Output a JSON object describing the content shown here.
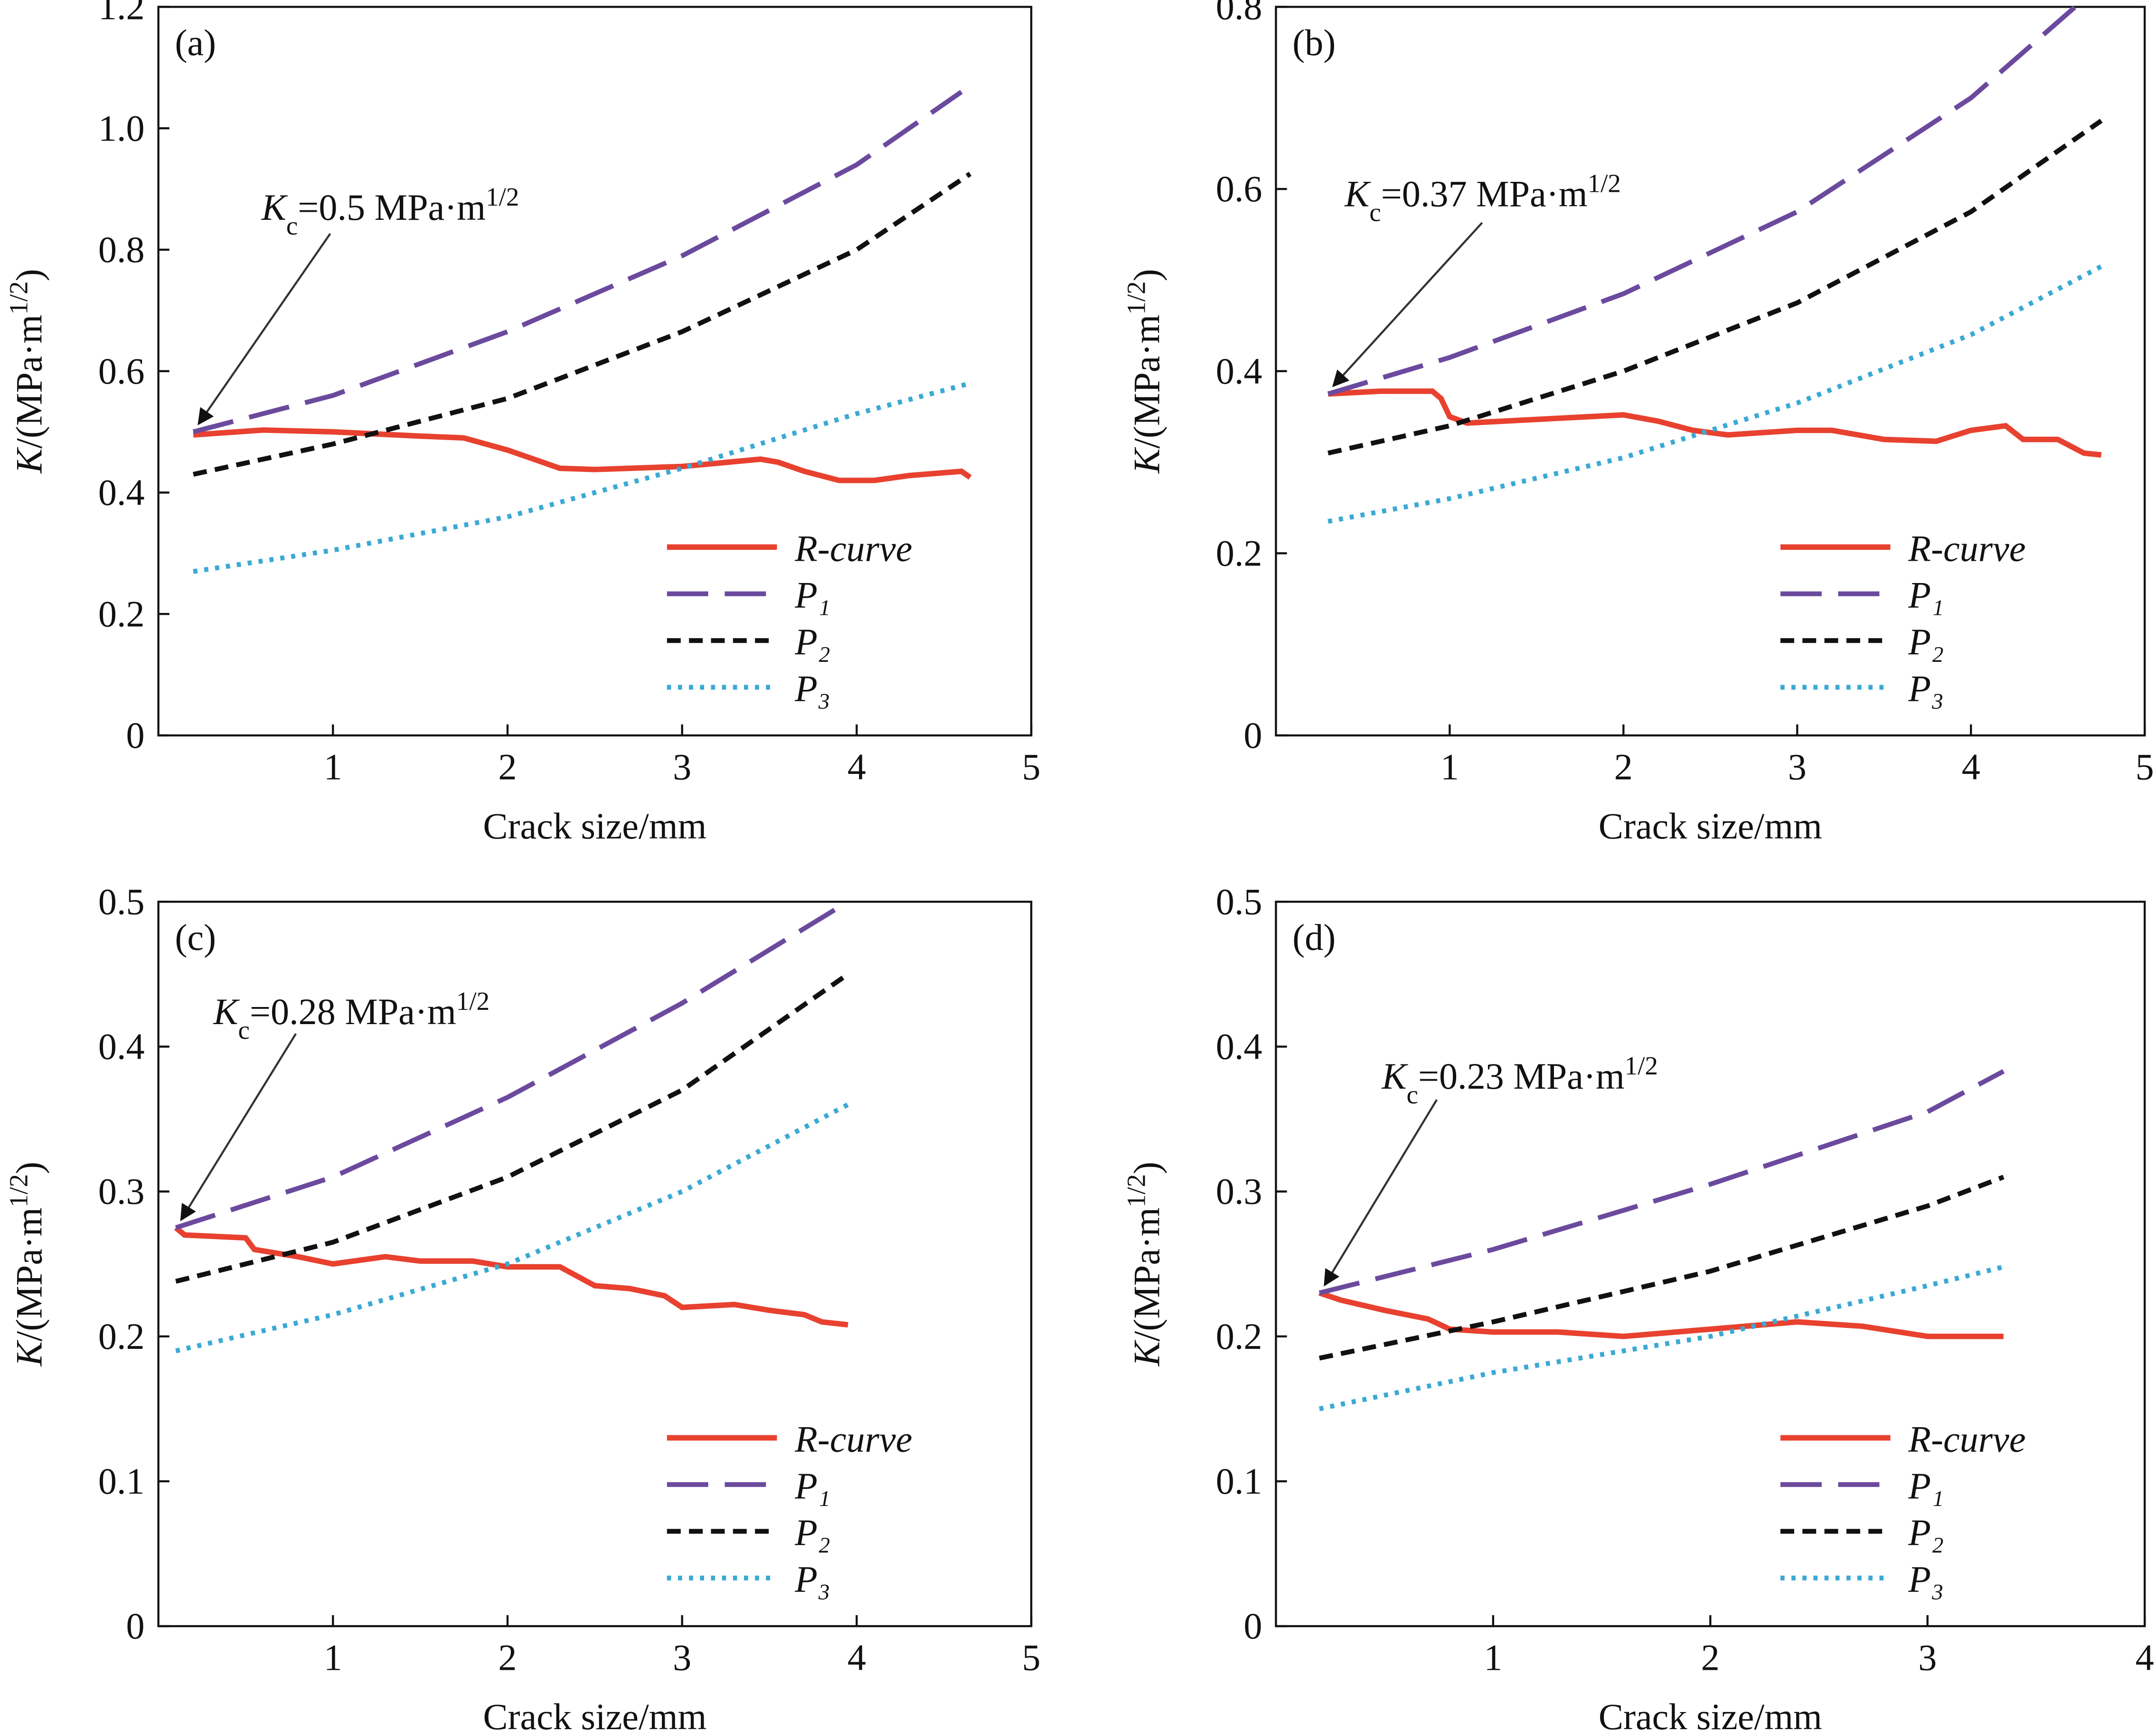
{
  "chart_data": [
    {
      "type": "line",
      "panel": "(a)",
      "xlabel": "Crack size/mm",
      "ylabel": [
        "K",
        "/(MPa·m",
        "1/2",
        ")"
      ],
      "annotation": [
        "K",
        "c",
        "=0.5 MPa·m",
        "1/2"
      ],
      "xlim": [
        0,
        5
      ],
      "ylim": [
        0,
        1.2
      ],
      "xticks": [
        1,
        2,
        3,
        4,
        5
      ],
      "yticks": [
        0,
        0.2,
        0.4,
        0.6,
        0.8,
        {
          "value": 1,
          "label": "1.0"
        },
        1.2
      ],
      "series": [
        {
          "name": "R-curve",
          "color": "#e8412f",
          "x": [
            0.2,
            0.6,
            1.0,
            1.5,
            1.75,
            2.0,
            2.3,
            2.5,
            3.0,
            3.45,
            3.55,
            3.7,
            3.9,
            4.1,
            4.3,
            4.6,
            4.65
          ],
          "values": [
            0.495,
            0.503,
            0.5,
            0.493,
            0.49,
            0.47,
            0.44,
            0.438,
            0.443,
            0.455,
            0.45,
            0.435,
            0.42,
            0.42,
            0.428,
            0.435,
            0.425
          ]
        },
        {
          "name": "P₁",
          "color": "#6b4a9e",
          "x": [
            0.2,
            1,
            2,
            3,
            4,
            4.6
          ],
          "values": [
            0.5,
            0.56,
            0.665,
            0.79,
            0.94,
            1.06
          ]
        },
        {
          "name": "P₂",
          "color": "#111111",
          "x": [
            0.2,
            1,
            2,
            3,
            4,
            4.65
          ],
          "values": [
            0.43,
            0.48,
            0.555,
            0.665,
            0.8,
            0.925
          ]
        },
        {
          "name": "P₃",
          "color": "#3aa9d4",
          "x": [
            0.2,
            1,
            2,
            3,
            4,
            4.65
          ],
          "values": [
            0.27,
            0.305,
            0.36,
            0.44,
            0.53,
            0.58
          ]
        }
      ]
    },
    {
      "type": "line",
      "panel": "(b)",
      "xlabel": "Crack size/mm",
      "ylabel": [
        "K",
        "/(MPa·m",
        "1/2",
        ")"
      ],
      "annotation": [
        "K",
        "c",
        "=0.37 MPa·m",
        "1/2"
      ],
      "xlim": [
        0,
        5
      ],
      "ylim": [
        0,
        0.8
      ],
      "xticks": [
        1,
        2,
        3,
        4,
        5
      ],
      "yticks": [
        0,
        0.2,
        0.4,
        0.6,
        0.8
      ],
      "series": [
        {
          "name": "R-curve",
          "color": "#e8412f",
          "x": [
            0.3,
            0.6,
            0.9,
            0.95,
            1.0,
            1.1,
            1.5,
            2.0,
            2.2,
            2.4,
            2.6,
            3.0,
            3.2,
            3.5,
            3.8,
            4.0,
            4.2,
            4.3,
            4.5,
            4.65,
            4.75
          ],
          "values": [
            0.375,
            0.378,
            0.378,
            0.37,
            0.35,
            0.343,
            0.347,
            0.352,
            0.345,
            0.335,
            0.33,
            0.335,
            0.335,
            0.325,
            0.323,
            0.335,
            0.34,
            0.325,
            0.325,
            0.31,
            0.308
          ]
        },
        {
          "name": "P₁",
          "color": "#6b4a9e",
          "x": [
            0.3,
            1,
            2,
            3,
            4,
            4.6
          ],
          "values": [
            0.375,
            0.415,
            0.485,
            0.575,
            0.7,
            0.8
          ]
        },
        {
          "name": "P₂",
          "color": "#111111",
          "x": [
            0.3,
            1,
            2,
            3,
            4,
            4.75
          ],
          "values": [
            0.31,
            0.34,
            0.4,
            0.475,
            0.575,
            0.675
          ]
        },
        {
          "name": "P₃",
          "color": "#3aa9d4",
          "x": [
            0.3,
            1,
            2,
            3,
            4,
            4.75
          ],
          "values": [
            0.235,
            0.26,
            0.305,
            0.365,
            0.44,
            0.515
          ]
        }
      ]
    },
    {
      "type": "line",
      "panel": "(c)",
      "xlabel": "Crack size/mm",
      "ylabel": [
        "K",
        "/(MPa·m",
        "1/2",
        ")"
      ],
      "annotation": [
        "K",
        "c",
        "=0.28 MPa·m",
        "1/2"
      ],
      "xlim": [
        0,
        5
      ],
      "ylim": [
        0,
        0.5
      ],
      "xticks": [
        1,
        2,
        3,
        4,
        5
      ],
      "yticks": [
        0,
        0.1,
        0.2,
        0.3,
        0.4,
        0.5
      ],
      "series": [
        {
          "name": "R-curve",
          "color": "#e8412f",
          "x": [
            0.1,
            0.15,
            0.5,
            0.55,
            0.8,
            1.0,
            1.3,
            1.5,
            1.8,
            2.0,
            2.3,
            2.5,
            2.7,
            2.9,
            3.0,
            3.3,
            3.5,
            3.7,
            3.8,
            3.95
          ],
          "values": [
            0.275,
            0.27,
            0.268,
            0.26,
            0.255,
            0.25,
            0.255,
            0.252,
            0.252,
            0.248,
            0.248,
            0.235,
            0.233,
            0.228,
            0.22,
            0.222,
            0.218,
            0.215,
            0.21,
            0.208
          ]
        },
        {
          "name": "P₁",
          "color": "#6b4a9e",
          "x": [
            0.1,
            1,
            2,
            3,
            3.95
          ],
          "values": [
            0.275,
            0.31,
            0.365,
            0.43,
            0.5
          ]
        },
        {
          "name": "P₂",
          "color": "#111111",
          "x": [
            0.1,
            1,
            2,
            3,
            3.95
          ],
          "values": [
            0.238,
            0.265,
            0.31,
            0.37,
            0.45
          ]
        },
        {
          "name": "P₃",
          "color": "#3aa9d4",
          "x": [
            0.1,
            1,
            2,
            3,
            3.95
          ],
          "values": [
            0.19,
            0.215,
            0.25,
            0.3,
            0.36
          ]
        }
      ]
    },
    {
      "type": "line",
      "panel": "(d)",
      "xlabel": "Crack size/mm",
      "ylabel": [
        "K",
        "/(MPa·m",
        "1/2",
        ")"
      ],
      "annotation": [
        "K",
        "c",
        "=0.23 MPa·m",
        "1/2"
      ],
      "xlim": [
        0,
        4
      ],
      "ylim": [
        0,
        0.5
      ],
      "xticks": [
        1,
        2,
        3,
        4
      ],
      "yticks": [
        0,
        0.1,
        0.2,
        0.3,
        0.4,
        0.5
      ],
      "series": [
        {
          "name": "R-curve",
          "color": "#e8412f",
          "x": [
            0.2,
            0.3,
            0.5,
            0.7,
            0.8,
            1.0,
            1.3,
            1.6,
            2.0,
            2.4,
            2.7,
            3.0,
            3.35
          ],
          "values": [
            0.23,
            0.225,
            0.218,
            0.212,
            0.205,
            0.203,
            0.203,
            0.2,
            0.205,
            0.21,
            0.207,
            0.2,
            0.2
          ]
        },
        {
          "name": "P₁",
          "color": "#6b4a9e",
          "x": [
            0.2,
            1,
            2,
            3,
            3.35
          ],
          "values": [
            0.23,
            0.26,
            0.305,
            0.355,
            0.383
          ]
        },
        {
          "name": "P₂",
          "color": "#111111",
          "x": [
            0.2,
            1,
            2,
            3,
            3.35
          ],
          "values": [
            0.185,
            0.21,
            0.245,
            0.29,
            0.31
          ]
        },
        {
          "name": "P₃",
          "color": "#3aa9d4",
          "x": [
            0.2,
            1,
            2,
            3,
            3.35
          ],
          "values": [
            0.15,
            0.175,
            0.2,
            0.235,
            0.248
          ]
        }
      ]
    }
  ]
}
